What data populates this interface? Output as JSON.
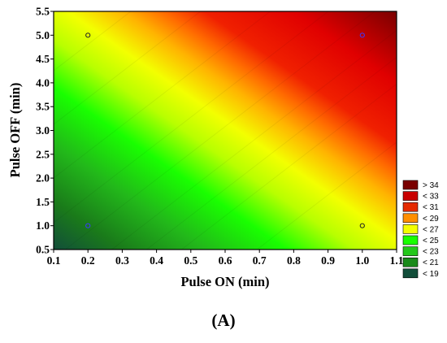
{
  "caption": "(A)",
  "chart_data": {
    "type": "contour",
    "xlabel": "Pulse ON (min)",
    "ylabel": "Pulse OFF (min)",
    "xlim": [
      0.1,
      1.1
    ],
    "ylim": [
      0.5,
      5.5
    ],
    "x_ticks": [
      "0.1",
      "0.2",
      "0.3",
      "0.4",
      "0.5",
      "0.6",
      "0.7",
      "0.8",
      "0.9",
      "1.0",
      "1.1"
    ],
    "y_ticks": [
      "0.5",
      "1.0",
      "1.5",
      "2.0",
      "2.5",
      "3.0",
      "3.5",
      "4.0",
      "4.5",
      "5.0",
      "5.5"
    ],
    "legend": {
      "position": "right",
      "entries": [
        {
          "label": "> 34",
          "color": "#7a0000"
        },
        {
          "label": "< 33",
          "color": "#c80000"
        },
        {
          "label": "< 31",
          "color": "#e52a00"
        },
        {
          "label": "< 29",
          "color": "#ff8f00"
        },
        {
          "label": "< 27",
          "color": "#f3ff00"
        },
        {
          "label": "< 25",
          "color": "#19ff00"
        },
        {
          "label": "< 23",
          "color": "#24c81a"
        },
        {
          "label": "< 21",
          "color": "#1a8a1a"
        },
        {
          "label": "< 19",
          "color": "#124e3a"
        }
      ]
    },
    "design_points": [
      {
        "x": 0.2,
        "y": 1.0
      },
      {
        "x": 0.2,
        "y": 5.0
      },
      {
        "x": 1.0,
        "y": 1.0
      },
      {
        "x": 1.0,
        "y": 5.0
      }
    ],
    "grid": false
  }
}
